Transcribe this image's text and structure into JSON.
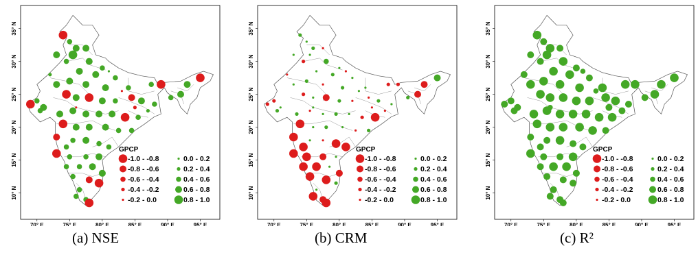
{
  "panels": [
    {
      "caption": "(a) NSE",
      "legend": {
        "title": "GPCP",
        "red_ranges": [
          "-1.0 - -0.8",
          "-0.8 - -0.6",
          "-0.6 - -0.4",
          "-0.4 - -0.2",
          "-0.2 - 0.0"
        ],
        "green_ranges": [
          "0.0 - 0.2",
          "0.2 - 0.4",
          "0.4 - 0.6",
          "0.6 - 0.8",
          "0.8 - 1.0"
        ]
      },
      "x_ticks": [
        "70° E",
        "75° E",
        "80° E",
        "85° E",
        "90° E",
        "95° E"
      ],
      "y_ticks": [
        "10° N",
        "15° N",
        "20° N",
        "25° N",
        "30° N",
        "35° N"
      ]
    },
    {
      "caption": "(b) CRM",
      "legend": {
        "title": "GPCP",
        "red_ranges": [
          "-1.0 - -0.8",
          "-0.8 - -0.6",
          "-0.6 - -0.4",
          "-0.4 - -0.2",
          "-0.2 - 0.0"
        ],
        "green_ranges": [
          "0.0 - 0.2",
          "0.2 - 0.4",
          "0.4 - 0.6",
          "0.6 - 0.8",
          "0.8 - 1.0"
        ]
      },
      "x_ticks": [
        "70° E",
        "75° E",
        "80° E",
        "85° E",
        "90° E",
        "95° E"
      ],
      "y_ticks": [
        "10° N",
        "15° N",
        "20° N",
        "25° N",
        "30° N",
        "35° N"
      ]
    },
    {
      "caption": "(c) R²",
      "legend": {
        "title": "GPCP",
        "red_ranges": [
          "-1.0 - -0.8",
          "-0.8 - -0.6",
          "-0.6 - -0.4",
          "-0.4 - -0.2",
          "-0.2 - 0.0"
        ],
        "green_ranges": [
          "0.0 - 0.2",
          "0.2 - 0.4",
          "0.4 - 0.6",
          "0.6 - 0.8",
          "0.8 - 1.0"
        ]
      },
      "x_ticks": [
        "70° E",
        "75° E",
        "80° E",
        "85° E",
        "90° E",
        "95° E"
      ],
      "y_ticks": [
        "10° N",
        "15° N",
        "20° N",
        "25° N",
        "30° N",
        "35° N"
      ]
    }
  ],
  "colors": {
    "negative": "#dd1c1c",
    "positive": "#44a826",
    "outline": "#555555"
  },
  "stations": [
    [
      74.0,
      34.0,
      -0.9,
      0.3,
      0.85
    ],
    [
      75.0,
      33.0,
      0.5,
      0.1,
      0.7
    ],
    [
      77.5,
      32.0,
      0.6,
      -0.1,
      0.75
    ],
    [
      76.0,
      32.0,
      0.7,
      0.2,
      0.8
    ],
    [
      73.0,
      31.0,
      0.6,
      0.1,
      0.75
    ],
    [
      75.5,
      31.0,
      0.8,
      0.1,
      0.8
    ],
    [
      78.0,
      30.0,
      0.6,
      0.5,
      0.85
    ],
    [
      74.5,
      30.0,
      0.5,
      -0.2,
      0.7
    ],
    [
      80.0,
      29.0,
      0.4,
      0.0,
      0.7
    ],
    [
      72.0,
      28.0,
      0.3,
      -0.1,
      0.6
    ],
    [
      76.5,
      28.5,
      0.7,
      0.1,
      0.8
    ],
    [
      79.0,
      28.0,
      0.7,
      0.2,
      0.85
    ],
    [
      82.0,
      27.5,
      0.5,
      0.1,
      0.75
    ],
    [
      75.0,
      27.0,
      0.6,
      0.2,
      0.85
    ],
    [
      73.0,
      26.5,
      0.7,
      0.1,
      0.8
    ],
    [
      77.5,
      26.5,
      0.6,
      -0.1,
      0.8
    ],
    [
      80.5,
      26.0,
      0.7,
      0.3,
      0.85
    ],
    [
      84.0,
      26.0,
      0.5,
      0.1,
      0.8
    ],
    [
      87.5,
      26.5,
      0.4,
      -0.2,
      0.8
    ],
    [
      89.0,
      26.5,
      -0.8,
      -0.2,
      0.85
    ],
    [
      93.0,
      26.5,
      0.6,
      -0.7,
      0.85
    ],
    [
      95.0,
      27.5,
      -0.8,
      0.6,
      0.85
    ],
    [
      92.0,
      25.0,
      0.6,
      -0.6,
      0.85
    ],
    [
      90.5,
      24.5,
      0.5,
      0.3,
      0.7
    ],
    [
      70.0,
      24.0,
      0.4,
      -0.2,
      0.7
    ],
    [
      71.0,
      23.0,
      0.6,
      0.1,
      0.75
    ],
    [
      69.0,
      23.5,
      -0.9,
      -0.2,
      0.7
    ],
    [
      70.5,
      22.5,
      0.5,
      0.2,
      0.75
    ],
    [
      74.5,
      25.0,
      -0.8,
      -0.2,
      0.8
    ],
    [
      76.0,
      24.5,
      0.6,
      0.1,
      0.85
    ],
    [
      78.0,
      24.5,
      -0.9,
      -0.7,
      0.85
    ],
    [
      80.0,
      24.0,
      0.6,
      0.2,
      0.85
    ],
    [
      82.0,
      24.0,
      0.5,
      -0.1,
      0.85
    ],
    [
      84.5,
      24.5,
      -0.6,
      -0.1,
      0.8
    ],
    [
      86.0,
      24.0,
      0.6,
      0.2,
      0.8
    ],
    [
      88.0,
      23.5,
      0.5,
      0.1,
      0.75
    ],
    [
      73.5,
      22.0,
      0.6,
      0.2,
      0.85
    ],
    [
      75.5,
      22.5,
      0.7,
      -0.1,
      0.85
    ],
    [
      77.5,
      22.0,
      0.6,
      0.1,
      0.85
    ],
    [
      79.5,
      22.0,
      0.7,
      0.2,
      0.85
    ],
    [
      81.5,
      22.0,
      0.6,
      0.1,
      0.85
    ],
    [
      83.5,
      21.5,
      -0.8,
      -0.2,
      0.8
    ],
    [
      85.5,
      21.5,
      0.5,
      -0.8,
      0.8
    ],
    [
      74.0,
      20.5,
      -0.9,
      -0.9,
      0.8
    ],
    [
      76.0,
      20.0,
      0.6,
      0.1,
      0.85
    ],
    [
      78.0,
      20.0,
      0.7,
      0.2,
      0.85
    ],
    [
      80.5,
      20.0,
      0.6,
      0.1,
      0.85
    ],
    [
      82.5,
      19.5,
      0.5,
      -0.1,
      0.8
    ],
    [
      84.5,
      19.5,
      0.4,
      0.3,
      0.75
    ],
    [
      73.0,
      18.5,
      -0.7,
      -0.9,
      0.7
    ],
    [
      75.5,
      18.0,
      0.5,
      0.1,
      0.75
    ],
    [
      77.5,
      18.0,
      0.6,
      -0.1,
      0.8
    ],
    [
      79.5,
      17.5,
      0.5,
      -0.9,
      0.75
    ],
    [
      74.5,
      17.0,
      0.5,
      -0.8,
      0.75
    ],
    [
      81.0,
      17.0,
      0.4,
      -0.9,
      0.75
    ],
    [
      73.0,
      16.0,
      -0.8,
      -0.9,
      0.8
    ],
    [
      75.0,
      15.5,
      0.4,
      -0.9,
      0.7
    ],
    [
      77.5,
      15.5,
      0.5,
      -0.6,
      0.75
    ],
    [
      79.5,
      15.5,
      0.6,
      0.1,
      0.8
    ],
    [
      74.5,
      14.0,
      0.4,
      -0.8,
      0.75
    ],
    [
      76.5,
      14.0,
      0.5,
      -0.9,
      0.8
    ],
    [
      78.5,
      14.0,
      0.6,
      0.1,
      0.8
    ],
    [
      80.0,
      13.0,
      0.6,
      -0.6,
      0.75
    ],
    [
      75.5,
      12.5,
      0.4,
      -0.9,
      0.75
    ],
    [
      78.0,
      12.0,
      -0.7,
      -0.8,
      0.7
    ],
    [
      79.5,
      11.5,
      -0.8,
      0.3,
      0.7
    ],
    [
      76.5,
      10.5,
      0.5,
      0.1,
      0.75
    ],
    [
      77.5,
      9.0,
      0.4,
      -0.6,
      0.7
    ],
    [
      78.0,
      8.5,
      -0.9,
      -0.8,
      0.6
    ],
    [
      76.0,
      9.5,
      0.5,
      -0.9,
      0.7
    ],
    [
      85.0,
      23.0,
      -0.3,
      -0.1,
      0.6
    ],
    [
      83.0,
      25.5,
      -0.1,
      0.05,
      0.4
    ],
    [
      81.0,
      28.5,
      0.1,
      -0.1,
      0.5
    ],
    [
      76.0,
      23.0,
      -0.1,
      0.05,
      0.5
    ],
    [
      87.0,
      22.5,
      0.2,
      -0.1,
      0.6
    ]
  ],
  "india_outline": [
    [
      75.5,
      37.0
    ],
    [
      77.0,
      35.5
    ],
    [
      78.5,
      35.5
    ],
    [
      79.5,
      34.0
    ],
    [
      78.5,
      32.5
    ],
    [
      79.0,
      31.0
    ],
    [
      80.5,
      30.5
    ],
    [
      81.0,
      30.0
    ],
    [
      82.5,
      29.0
    ],
    [
      84.0,
      28.3
    ],
    [
      86.0,
      27.8
    ],
    [
      88.0,
      27.5
    ],
    [
      88.5,
      26.5
    ],
    [
      89.5,
      26.8
    ],
    [
      92.0,
      27.0
    ],
    [
      94.0,
      28.0
    ],
    [
      95.5,
      28.5
    ],
    [
      97.0,
      28.0
    ],
    [
      96.5,
      27.0
    ],
    [
      95.0,
      26.0
    ],
    [
      94.5,
      24.5
    ],
    [
      93.5,
      23.5
    ],
    [
      93.0,
      22.0
    ],
    [
      92.0,
      23.0
    ],
    [
      91.5,
      24.2
    ],
    [
      90.0,
      25.2
    ],
    [
      89.5,
      26.0
    ],
    [
      88.5,
      25.0
    ],
    [
      89.0,
      22.0
    ],
    [
      88.0,
      21.6
    ],
    [
      86.5,
      20.5
    ],
    [
      85.0,
      19.5
    ],
    [
      84.0,
      18.5
    ],
    [
      82.5,
      17.0
    ],
    [
      81.0,
      16.0
    ],
    [
      80.0,
      15.0
    ],
    [
      80.2,
      13.5
    ],
    [
      80.0,
      11.5
    ],
    [
      79.5,
      10.3
    ],
    [
      78.5,
      9.2
    ],
    [
      77.5,
      8.1
    ],
    [
      76.5,
      8.9
    ],
    [
      76.0,
      10.5
    ],
    [
      75.5,
      11.8
    ],
    [
      74.8,
      13.0
    ],
    [
      74.2,
      14.8
    ],
    [
      73.5,
      16.0
    ],
    [
      73.0,
      17.5
    ],
    [
      72.8,
      19.0
    ],
    [
      72.8,
      20.8
    ],
    [
      72.0,
      21.5
    ],
    [
      70.5,
      20.8
    ],
    [
      69.0,
      22.3
    ],
    [
      68.5,
      23.5
    ],
    [
      70.0,
      24.5
    ],
    [
      70.5,
      25.5
    ],
    [
      70.0,
      26.5
    ],
    [
      71.5,
      27.8
    ],
    [
      72.5,
      28.8
    ],
    [
      73.5,
      29.8
    ],
    [
      74.5,
      31.0
    ],
    [
      74.0,
      32.5
    ],
    [
      74.5,
      33.5
    ],
    [
      73.5,
      34.5
    ],
    [
      74.5,
      35.5
    ],
    [
      75.5,
      37.0
    ]
  ],
  "state_lines": [
    [
      [
        75.0,
        32.5
      ],
      [
        77.0,
        32.5
      ],
      [
        78.5,
        31.0
      ]
    ],
    [
      [
        74.5,
        30.0
      ],
      [
        77.0,
        30.5
      ],
      [
        78.0,
        29.5
      ],
      [
        80.5,
        28.7
      ]
    ],
    [
      [
        72.0,
        27.5
      ],
      [
        74.5,
        27.0
      ],
      [
        76.5,
        26.5
      ],
      [
        78.0,
        25.0
      ],
      [
        77.5,
        24.0
      ]
    ],
    [
      [
        72.5,
        24.5
      ],
      [
        74.5,
        24.0
      ],
      [
        76.0,
        23.0
      ],
      [
        78.0,
        22.5
      ],
      [
        80.5,
        22.0
      ],
      [
        82.5,
        22.5
      ]
    ],
    [
      [
        73.0,
        20.5
      ],
      [
        75.5,
        20.5
      ],
      [
        78.5,
        21.0
      ],
      [
        80.5,
        20.0
      ],
      [
        82.0,
        19.5
      ]
    ],
    [
      [
        84.0,
        27.5
      ],
      [
        84.0,
        25.5
      ],
      [
        86.0,
        25.0
      ],
      [
        88.0,
        25.5
      ]
    ],
    [
      [
        82.5,
        24.5
      ],
      [
        84.0,
        24.0
      ],
      [
        86.5,
        23.0
      ],
      [
        88.0,
        22.0
      ]
    ],
    [
      [
        84.0,
        22.5
      ],
      [
        85.5,
        21.8
      ],
      [
        87.0,
        21.5
      ]
    ],
    [
      [
        74.2,
        15.5
      ],
      [
        76.5,
        15.5
      ],
      [
        78.5,
        16.0
      ],
      [
        80.5,
        15.5
      ]
    ],
    [
      [
        74.8,
        13.0
      ],
      [
        77.0,
        13.0
      ],
      [
        78.5,
        12.5
      ],
      [
        80.0,
        13.0
      ]
    ],
    [
      [
        76.0,
        11.5
      ],
      [
        77.0,
        10.5
      ],
      [
        77.5,
        9.0
      ]
    ],
    [
      [
        78.5,
        17.0
      ],
      [
        80.0,
        17.5
      ],
      [
        81.5,
        18.5
      ],
      [
        82.5,
        17.0
      ]
    ],
    [
      [
        91.5,
        26.0
      ],
      [
        93.0,
        25.5
      ],
      [
        94.0,
        26.5
      ]
    ],
    [
      [
        90.5,
        25.5
      ],
      [
        92.0,
        25.0
      ],
      [
        92.5,
        23.5
      ]
    ]
  ]
}
